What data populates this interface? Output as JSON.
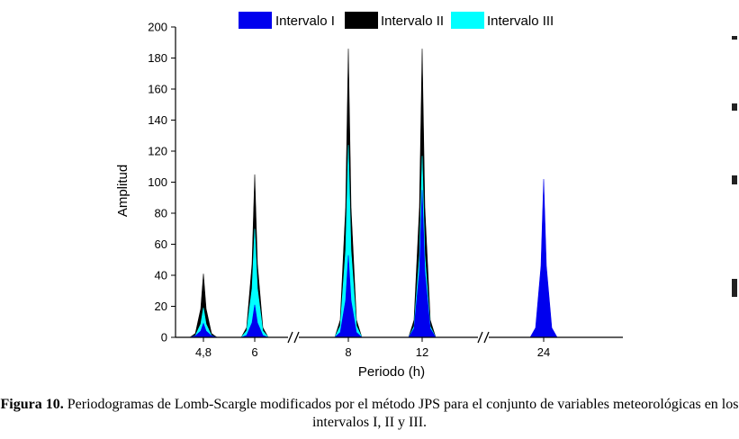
{
  "chart_data": {
    "type": "area",
    "ylabel": "Amplitud",
    "xlabel": "Periodo (h)",
    "yticks": [
      0,
      20,
      40,
      60,
      80,
      100,
      120,
      140,
      160,
      180,
      200
    ],
    "ylim": [
      0,
      200
    ],
    "x_tick_labels": [
      "4,8",
      "6",
      "8",
      "12",
      "24"
    ],
    "axis_breaks": 2,
    "legend_position": "top",
    "series": [
      {
        "name": "Intervalo I",
        "color": "#0000EE",
        "peaks": [
          {
            "period": "4,8",
            "value": 9
          },
          {
            "period": "6",
            "value": 21
          },
          {
            "period": "8",
            "value": 53
          },
          {
            "period": "12",
            "value": 95
          },
          {
            "period": "24",
            "value": 102
          }
        ]
      },
      {
        "name": "Intervalo II",
        "color": "#000000",
        "peaks": [
          {
            "period": "4,8",
            "value": 41
          },
          {
            "period": "6",
            "value": 105
          },
          {
            "period": "8",
            "value": 186
          },
          {
            "period": "12",
            "value": 186
          },
          {
            "period": "24",
            "value": 14
          }
        ]
      },
      {
        "name": "Intervalo III",
        "color": "#00FFFF",
        "peaks": [
          {
            "period": "4,8",
            "value": 19
          },
          {
            "period": "6",
            "value": 70
          },
          {
            "period": "8",
            "value": 124
          },
          {
            "period": "12",
            "value": 117
          },
          {
            "period": "24",
            "value": 61
          }
        ]
      }
    ]
  },
  "caption": {
    "label": "Figura 10.",
    "text": "Periodogramas de Lomb-Scargle modificados por el método JPS para el conjunto de variables meteorológicas en los intervalos I, II y III."
  }
}
